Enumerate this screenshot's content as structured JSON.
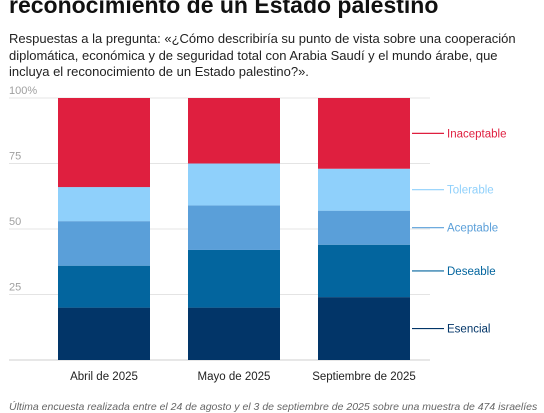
{
  "header": {
    "title": "reconocimiento de un Estado palestino",
    "subtitle": "Respuestas a la pregunta: «¿Cómo describiría su punto de vista sobre una cooperación diplomática, económica y de seguridad total con Arabia Saudí y el mundo árabe, que incluya el reconocimiento de un Estado palestino?»."
  },
  "footnote": "Última encuesta realizada entre el 24 de agosto y el 3 de septiembre de 2025 sobre una muestra de 474 israelíes",
  "chart_data": {
    "type": "bar",
    "stacked": true,
    "categories": [
      "Abril de 2025",
      "Mayo de 2025",
      "Septiembre de 2025"
    ],
    "y_ticks": [
      "25",
      "50",
      "75",
      "100%"
    ],
    "ylim": [
      0,
      100
    ],
    "grid": true,
    "legend_placement": "right",
    "series": [
      {
        "name": "Esencial",
        "color": "#023568",
        "values": [
          20,
          20,
          24
        ]
      },
      {
        "name": "Deseable",
        "color": "#03659e",
        "values": [
          16,
          22,
          20
        ]
      },
      {
        "name": "Aceptable",
        "color": "#5a9fd9",
        "values": [
          17,
          17,
          13
        ]
      },
      {
        "name": "Tolerable",
        "color": "#8fd0fb",
        "values": [
          13,
          16,
          16
        ]
      },
      {
        "name": "Inaceptable",
        "color": "#df1f3f",
        "values": [
          34,
          25,
          27
        ]
      }
    ]
  }
}
